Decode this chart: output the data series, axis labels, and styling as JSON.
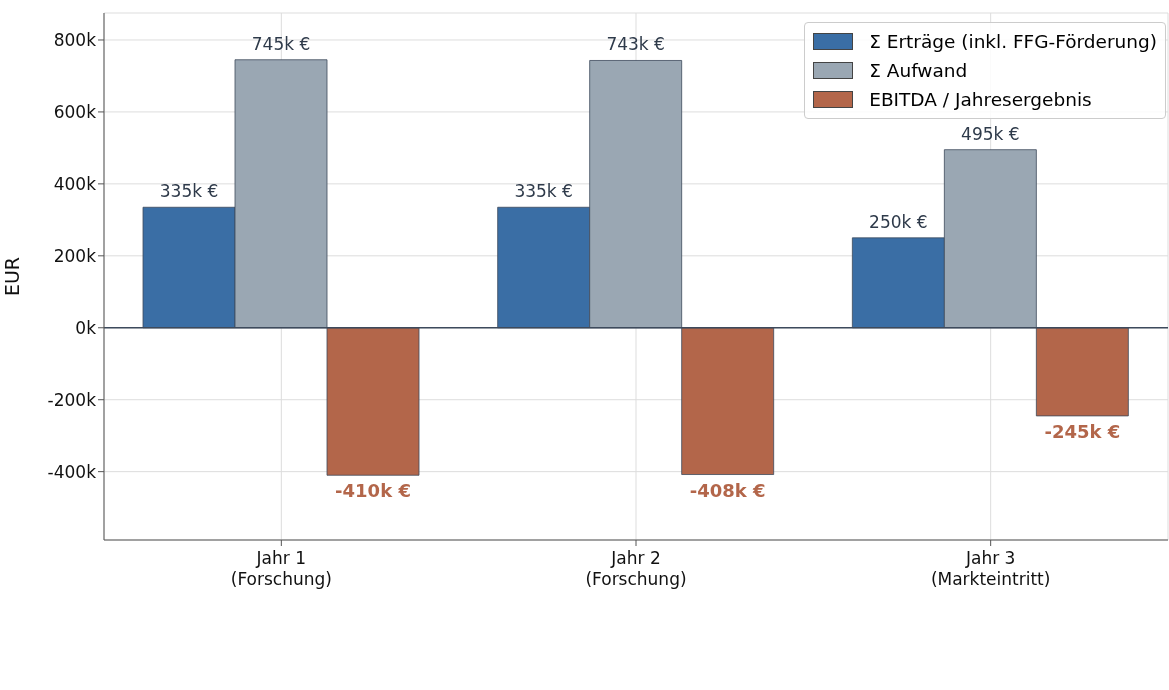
{
  "chart_data": {
    "type": "bar",
    "ylabel": "EUR",
    "categories": [
      "Jahr 1\n(Forschung)",
      "Jahr 2\n(Forschung)",
      "Jahr 3\n(Markteintritt)"
    ],
    "series": [
      {
        "name": "Σ Erträge (inkl. FFG-Förderung)",
        "color": "#3a6ea5",
        "values": [
          335000,
          335000,
          250000
        ],
        "value_labels": [
          "335k €",
          "335k €",
          "250k €"
        ]
      },
      {
        "name": "Σ Aufwand",
        "color": "#9aa7b3",
        "values": [
          745000,
          743000,
          495000
        ],
        "value_labels": [
          "745k €",
          "743k €",
          "495k €"
        ]
      },
      {
        "name": "EBITDA / Jahresergebnis",
        "color": "#b3664a",
        "values": [
          -410000,
          -408000,
          -245000
        ],
        "value_labels": [
          "-410k €",
          "-408k €",
          "-245k €"
        ]
      }
    ],
    "ylim": [
      -590000,
      875000
    ],
    "yticks": [
      {
        "value": -400000,
        "label": "-400k"
      },
      {
        "value": -200000,
        "label": "-200k"
      },
      {
        "value": 0,
        "label": "0k"
      },
      {
        "value": 200000,
        "label": "200k"
      },
      {
        "value": 400000,
        "label": "400k"
      },
      {
        "value": 600000,
        "label": "600k"
      },
      {
        "value": 800000,
        "label": "800k"
      }
    ],
    "ref_lines": [
      {
        "axis": "y",
        "value": 0,
        "color": "#3d4a5c"
      }
    ],
    "grid": true,
    "legend": "top right"
  }
}
